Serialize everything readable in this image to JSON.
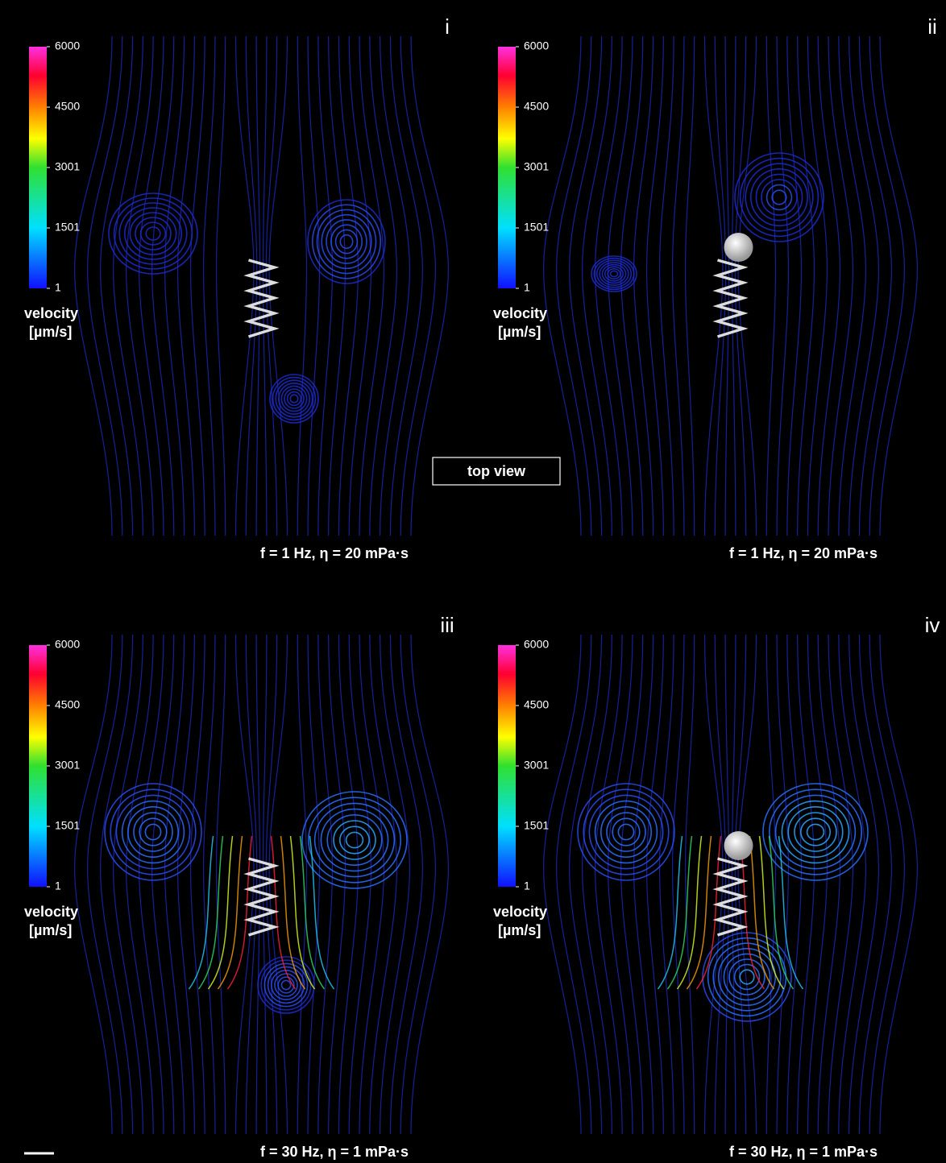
{
  "panels": [
    {
      "label": "i",
      "colorbar": {
        "ticks": [
          6000,
          4500,
          3001,
          1501,
          1
        ],
        "title": "velocity",
        "unit": "[µm/s]"
      },
      "caption": "f = 1 Hz, η = 20 mPa·s"
    },
    {
      "label": "ii",
      "colorbar": {
        "ticks": [
          6000,
          4500,
          3001,
          1501,
          1
        ],
        "title": "velocity",
        "unit": "[µm/s]"
      },
      "caption": "f = 1 Hz, η = 20 mPa·s"
    },
    {
      "label": "iii",
      "colorbar": {
        "ticks": [
          6000,
          4500,
          3001,
          1501,
          1
        ],
        "title": "velocity",
        "unit": "[µm/s]"
      },
      "caption": "f = 30 Hz, η = 1 mPa·s"
    },
    {
      "label": "iv",
      "colorbar": {
        "ticks": [
          6000,
          4500,
          3001,
          1501,
          1
        ],
        "title": "velocity",
        "unit": "[µm/s]"
      },
      "caption": "f = 30 Hz, η = 1 mPa·s"
    }
  ],
  "inset_label": "top view"
}
